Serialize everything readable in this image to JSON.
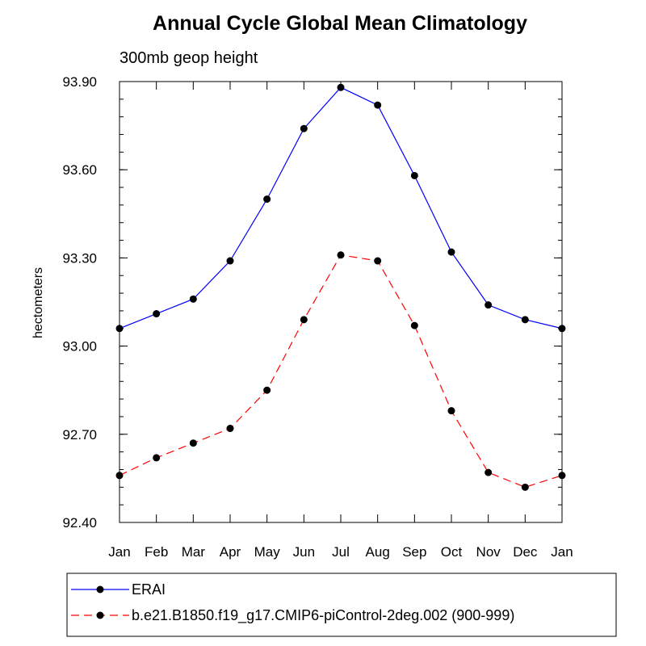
{
  "chart_data": {
    "type": "line",
    "title": "Annual Cycle Global Mean Climatology",
    "subtitle": "300mb geop height",
    "xlabel": "",
    "ylabel": "hectometers",
    "categories": [
      "Jan",
      "Feb",
      "Mar",
      "Apr",
      "May",
      "Jun",
      "Jul",
      "Aug",
      "Sep",
      "Oct",
      "Nov",
      "Dec",
      "Jan"
    ],
    "ylim": [
      92.4,
      93.9
    ],
    "yticks": [
      "92.40",
      "92.70",
      "93.00",
      "93.30",
      "93.60",
      "93.90"
    ],
    "grid": false,
    "legend_position": "bottom",
    "series": [
      {
        "name": "ERAI",
        "color": "#0000ff",
        "dash": "solid",
        "marker": "dot",
        "values": [
          93.06,
          93.11,
          93.16,
          93.29,
          93.5,
          93.74,
          93.88,
          93.82,
          93.58,
          93.32,
          93.14,
          93.09,
          93.06
        ]
      },
      {
        "name": "b.e21.B1850.f19_g17.CMIP6-piControl-2deg.002 (900-999)",
        "color": "#ff0000",
        "dash": "dashed",
        "marker": "dot",
        "values": [
          92.56,
          92.62,
          92.67,
          92.72,
          92.85,
          93.09,
          93.31,
          93.29,
          93.07,
          92.78,
          92.57,
          92.52,
          92.56
        ]
      }
    ]
  }
}
